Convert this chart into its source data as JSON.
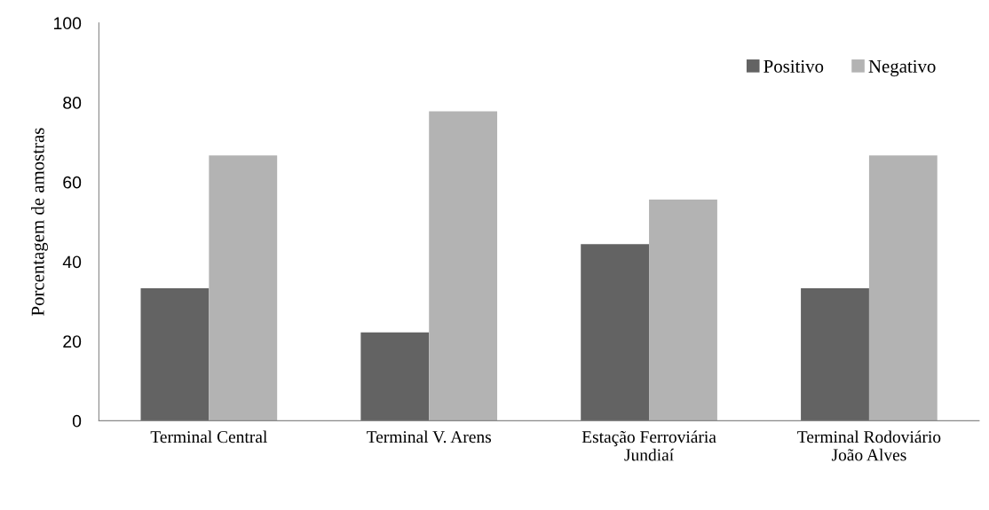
{
  "chart_data": {
    "type": "bar",
    "ylabel": "Porcentagem de amostras",
    "categories": [
      "Terminal Central",
      "Terminal V. Arens",
      "Estação Ferroviária\nJundiaí",
      "Terminal Rodoviário\nJoão Alves"
    ],
    "series": [
      {
        "name": "Positivo",
        "color": "#636363",
        "values": [
          33.3,
          22.2,
          44.4,
          33.3
        ]
      },
      {
        "name": "Negativo",
        "color": "#b3b3b3",
        "values": [
          66.7,
          77.8,
          55.6,
          66.7
        ]
      }
    ],
    "ylim": [
      0,
      100
    ],
    "yticks": [
      0,
      20,
      40,
      60,
      80,
      100
    ],
    "grid": false,
    "legend": "top right"
  }
}
